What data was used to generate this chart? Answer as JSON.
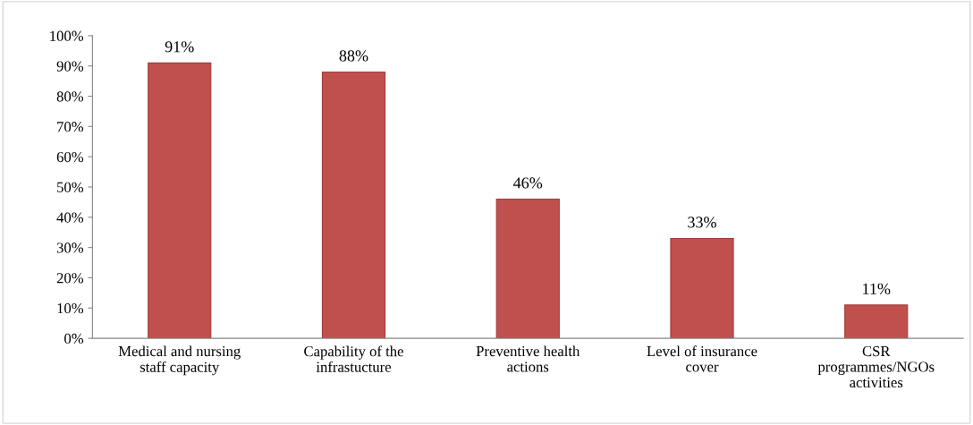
{
  "chart_data": {
    "type": "bar",
    "categories": [
      "Medical and nursing\nstaff capacity",
      "Capability of the\ninfrastucture",
      "Preventive health\nactions",
      "Level of insurance\ncover",
      "CSR\nprogrammes/NGOs\nactivities"
    ],
    "values": [
      91,
      88,
      46,
      33,
      11
    ],
    "value_labels": [
      "91%",
      "88%",
      "46%",
      "33%",
      "11%"
    ],
    "color": "#c0504d",
    "ylim": [
      0,
      100
    ],
    "yticks": [
      {
        "value": 0,
        "label": "0%"
      },
      {
        "value": 10,
        "label": "10%"
      },
      {
        "value": 20,
        "label": "20%"
      },
      {
        "value": 30,
        "label": "30%"
      },
      {
        "value": 40,
        "label": "40%"
      },
      {
        "value": 50,
        "label": "50%"
      },
      {
        "value": 60,
        "label": "60%"
      },
      {
        "value": 70,
        "label": "70%"
      },
      {
        "value": 80,
        "label": "80%"
      },
      {
        "value": 90,
        "label": "90%"
      },
      {
        "value": 100,
        "label": "100%"
      }
    ],
    "grid": false,
    "legend": false
  }
}
